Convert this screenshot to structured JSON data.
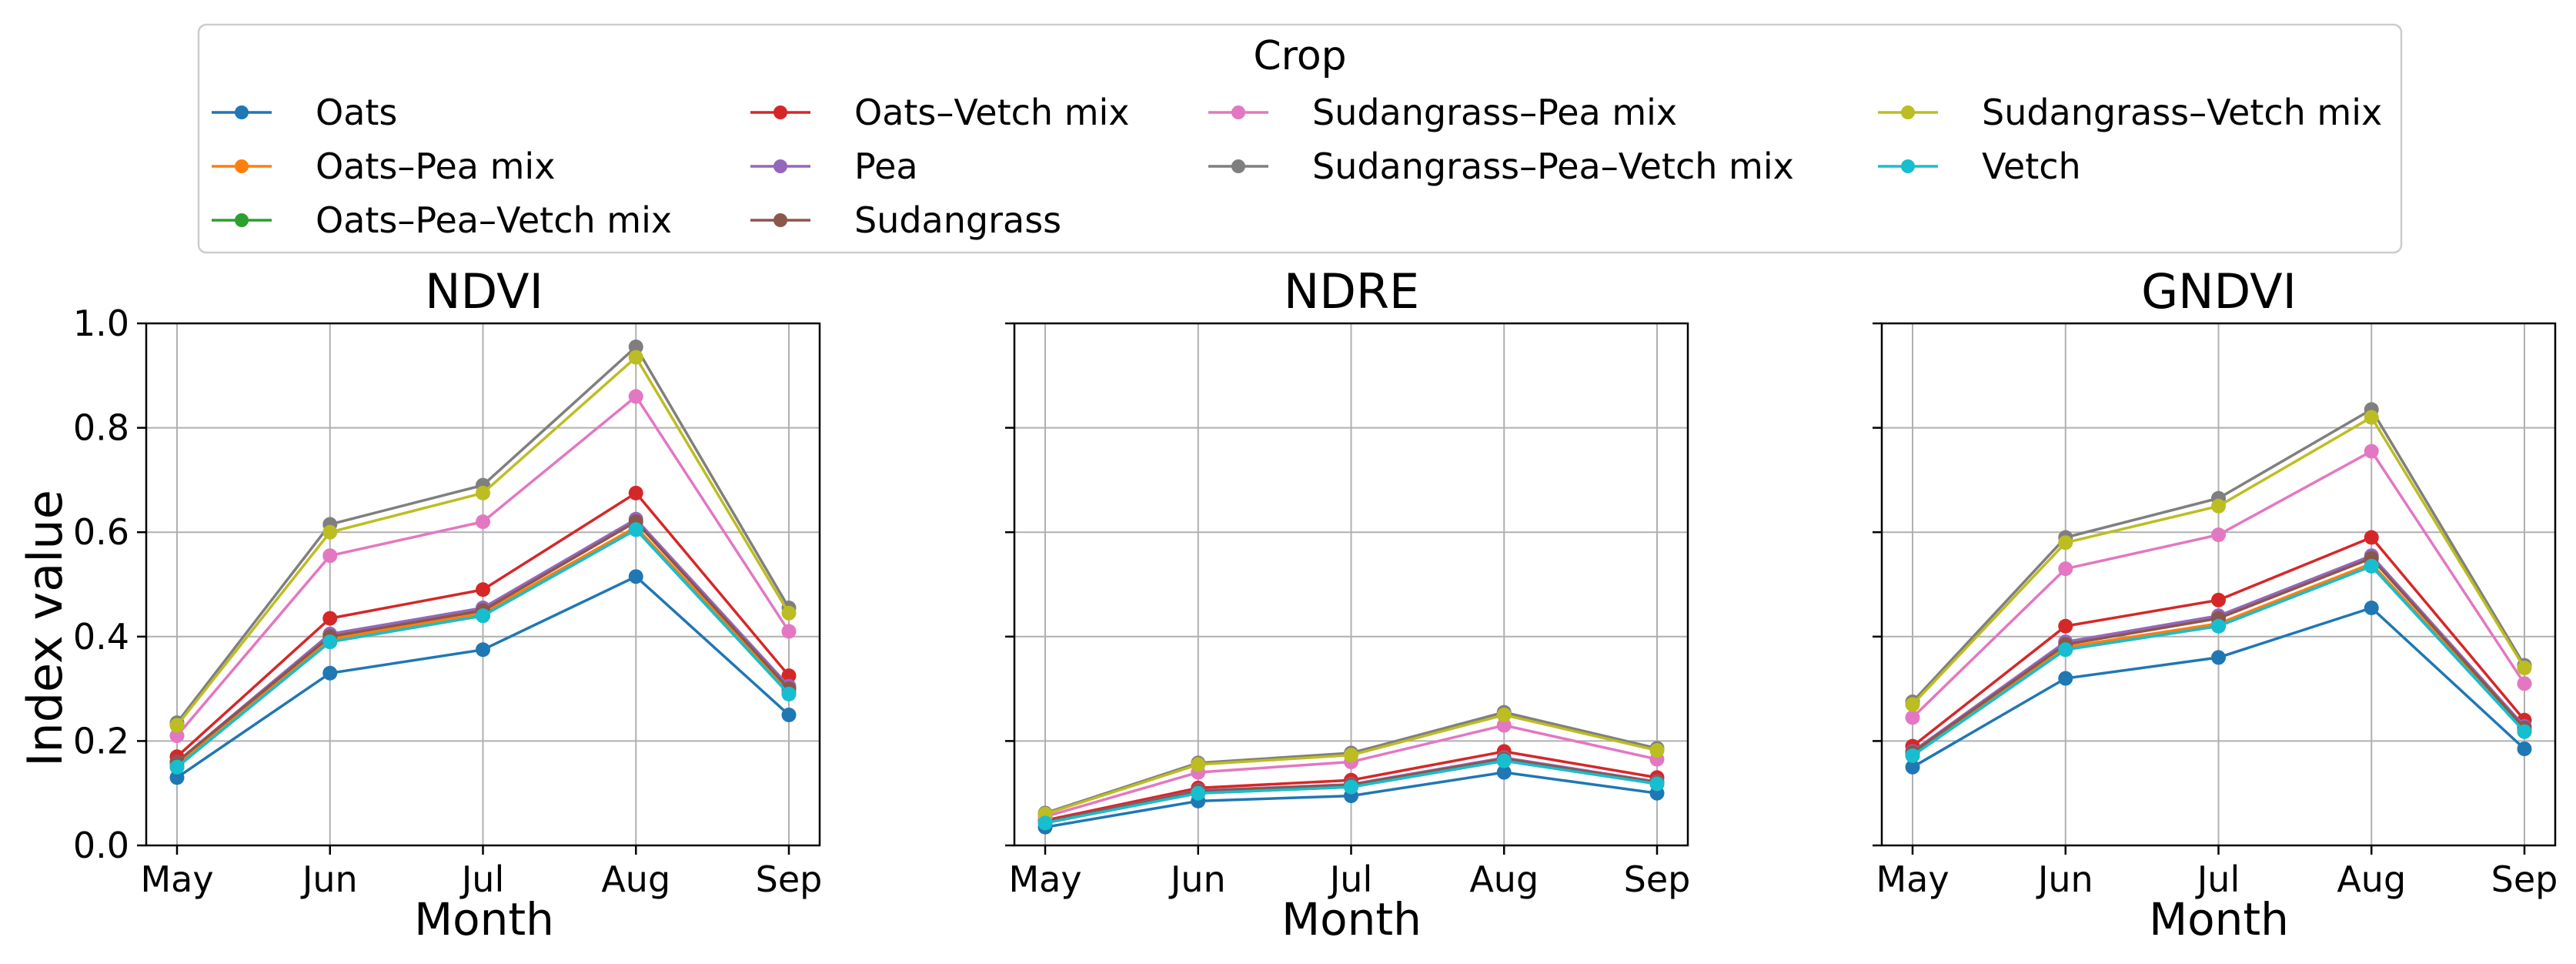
{
  "chart_data": {
    "type": "line",
    "categories": [
      "May",
      "Jun",
      "Jul",
      "Aug",
      "Sep"
    ],
    "xlabel": "Month",
    "ylabel": "Index value",
    "ylim": [
      0.0,
      1.0
    ],
    "yticks": [
      "0.0",
      "0.2",
      "0.4",
      "0.6",
      "0.8",
      "1.0"
    ],
    "grid": true,
    "legend": {
      "title": "Crop",
      "placement": "top-center",
      "columns": 4
    },
    "colors": {
      "Oats": "#1f77b4",
      "Oats–Pea mix": "#ff7f0e",
      "Oats–Pea–Vetch mix": "#2ca02c",
      "Oats–Vetch mix": "#d62728",
      "Pea": "#9467bd",
      "Sudangrass": "#8c564b",
      "Sudangrass–Pea mix": "#e377c2",
      "Sudangrass–Pea–Vetch mix": "#7f7f7f",
      "Sudangrass–Vetch mix": "#bcbd22",
      "Vetch": "#17becf"
    },
    "series_names": [
      "Oats",
      "Oats–Pea mix",
      "Oats–Pea–Vetch mix",
      "Oats–Vetch mix",
      "Pea",
      "Sudangrass",
      "Sudangrass–Pea mix",
      "Sudangrass–Pea–Vetch mix",
      "Sudangrass–Vetch mix",
      "Vetch"
    ],
    "panels": [
      {
        "title": "NDVI",
        "series": [
          {
            "name": "Oats",
            "values": [
              0.13,
              0.33,
              0.375,
              0.515,
              0.25
            ]
          },
          {
            "name": "Oats–Pea mix",
            "values": [
              0.155,
              0.395,
              0.445,
              0.61,
              0.295
            ]
          },
          {
            "name": "Oats–Pea–Vetch mix",
            "values": [
              0.15,
              0.39,
              0.44,
              0.605,
              0.29
            ]
          },
          {
            "name": "Oats–Vetch mix",
            "values": [
              0.17,
              0.435,
              0.49,
              0.675,
              0.325
            ]
          },
          {
            "name": "Pea",
            "values": [
              0.16,
              0.405,
              0.455,
              0.625,
              0.305
            ]
          },
          {
            "name": "Sudangrass",
            "values": [
              0.16,
              0.4,
              0.45,
              0.62,
              0.3
            ]
          },
          {
            "name": "Sudangrass–Pea mix",
            "values": [
              0.21,
              0.555,
              0.62,
              0.86,
              0.41
            ]
          },
          {
            "name": "Sudangrass–Pea–Vetch mix",
            "values": [
              0.235,
              0.615,
              0.69,
              0.955,
              0.455
            ]
          },
          {
            "name": "Sudangrass–Vetch mix",
            "values": [
              0.23,
              0.6,
              0.675,
              0.935,
              0.445
            ]
          },
          {
            "name": "Vetch",
            "values": [
              0.15,
              0.39,
              0.44,
              0.605,
              0.29
            ]
          }
        ]
      },
      {
        "title": "NDRE",
        "series": [
          {
            "name": "Oats",
            "values": [
              0.035,
              0.085,
              0.095,
              0.14,
              0.1
            ]
          },
          {
            "name": "Oats–Pea mix",
            "values": [
              0.045,
              0.105,
              0.115,
              0.165,
              0.12
            ]
          },
          {
            "name": "Oats–Pea–Vetch mix",
            "values": [
              0.043,
              0.1,
              0.112,
              0.162,
              0.118
            ]
          },
          {
            "name": "Oats–Vetch mix",
            "values": [
              0.048,
              0.11,
              0.125,
              0.18,
              0.13
            ]
          },
          {
            "name": "Pea",
            "values": [
              0.045,
              0.105,
              0.117,
              0.168,
              0.122
            ]
          },
          {
            "name": "Sudangrass",
            "values": [
              0.045,
              0.104,
              0.116,
              0.166,
              0.121
            ]
          },
          {
            "name": "Sudangrass–Pea mix",
            "values": [
              0.055,
              0.14,
              0.16,
              0.23,
              0.165
            ]
          },
          {
            "name": "Sudangrass–Pea–Vetch mix",
            "values": [
              0.062,
              0.158,
              0.177,
              0.255,
              0.186
            ]
          },
          {
            "name": "Sudangrass–Vetch mix",
            "values": [
              0.06,
              0.155,
              0.173,
              0.25,
              0.182
            ]
          },
          {
            "name": "Vetch",
            "values": [
              0.043,
              0.1,
              0.112,
              0.162,
              0.118
            ]
          }
        ]
      },
      {
        "title": "GNDVI",
        "series": [
          {
            "name": "Oats",
            "values": [
              0.15,
              0.32,
              0.36,
              0.455,
              0.185
            ]
          },
          {
            "name": "Oats–Pea mix",
            "values": [
              0.175,
              0.38,
              0.425,
              0.54,
              0.22
            ]
          },
          {
            "name": "Oats–Pea–Vetch mix",
            "values": [
              0.172,
              0.375,
              0.42,
              0.535,
              0.218
            ]
          },
          {
            "name": "Oats–Vetch mix",
            "values": [
              0.19,
              0.42,
              0.47,
              0.59,
              0.24
            ]
          },
          {
            "name": "Pea",
            "values": [
              0.18,
              0.39,
              0.44,
              0.555,
              0.228
            ]
          },
          {
            "name": "Sudangrass",
            "values": [
              0.178,
              0.385,
              0.435,
              0.55,
              0.225
            ]
          },
          {
            "name": "Sudangrass–Pea mix",
            "values": [
              0.245,
              0.53,
              0.595,
              0.755,
              0.31
            ]
          },
          {
            "name": "Sudangrass–Pea–Vetch mix",
            "values": [
              0.275,
              0.59,
              0.665,
              0.835,
              0.345
            ]
          },
          {
            "name": "Sudangrass–Vetch mix",
            "values": [
              0.27,
              0.58,
              0.65,
              0.82,
              0.34
            ]
          },
          {
            "name": "Vetch",
            "values": [
              0.172,
              0.375,
              0.42,
              0.535,
              0.218
            ]
          }
        ]
      }
    ]
  }
}
